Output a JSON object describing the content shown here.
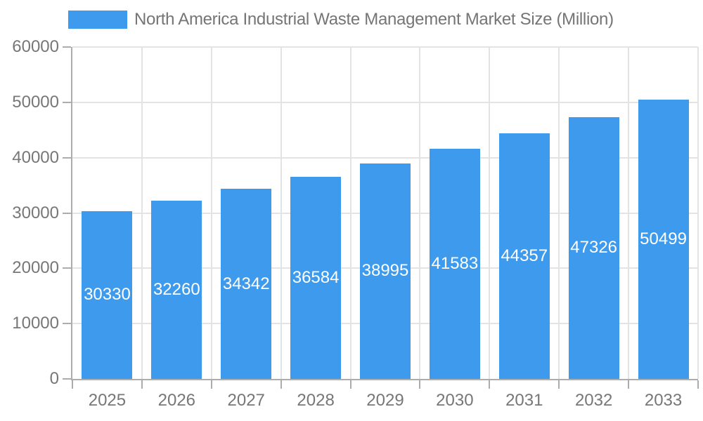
{
  "chart_data": {
    "type": "bar",
    "title": "North America Industrial Waste Management Market Size (Million)",
    "legend": {
      "position": "top",
      "label": "North America Industrial Waste Management Market Size (Million)"
    },
    "categories": [
      "2025",
      "2026",
      "2027",
      "2028",
      "2029",
      "2030",
      "2031",
      "2032",
      "2033"
    ],
    "series": [
      {
        "name": "North America Industrial Waste Management Market Size (Million)",
        "values": [
          30330,
          32260,
          34342,
          36584,
          38995,
          41583,
          44357,
          47326,
          50499
        ]
      }
    ],
    "data_labels_visible": true,
    "xlabel": "",
    "ylabel": "",
    "ylim": [
      0,
      60000
    ],
    "ytick_step": 10000,
    "ytick_labels": [
      "0",
      "10000",
      "20000",
      "30000",
      "40000",
      "50000",
      "60000"
    ],
    "grid": true,
    "colors": {
      "bar": "#3D9AEC",
      "data_label": "#FFFFFF",
      "axis": "#ADADAD",
      "grid": "#E3E3E3",
      "tick_label_text": "#777777",
      "legend_text": "#757575",
      "background": "#FFFFFF"
    }
  }
}
